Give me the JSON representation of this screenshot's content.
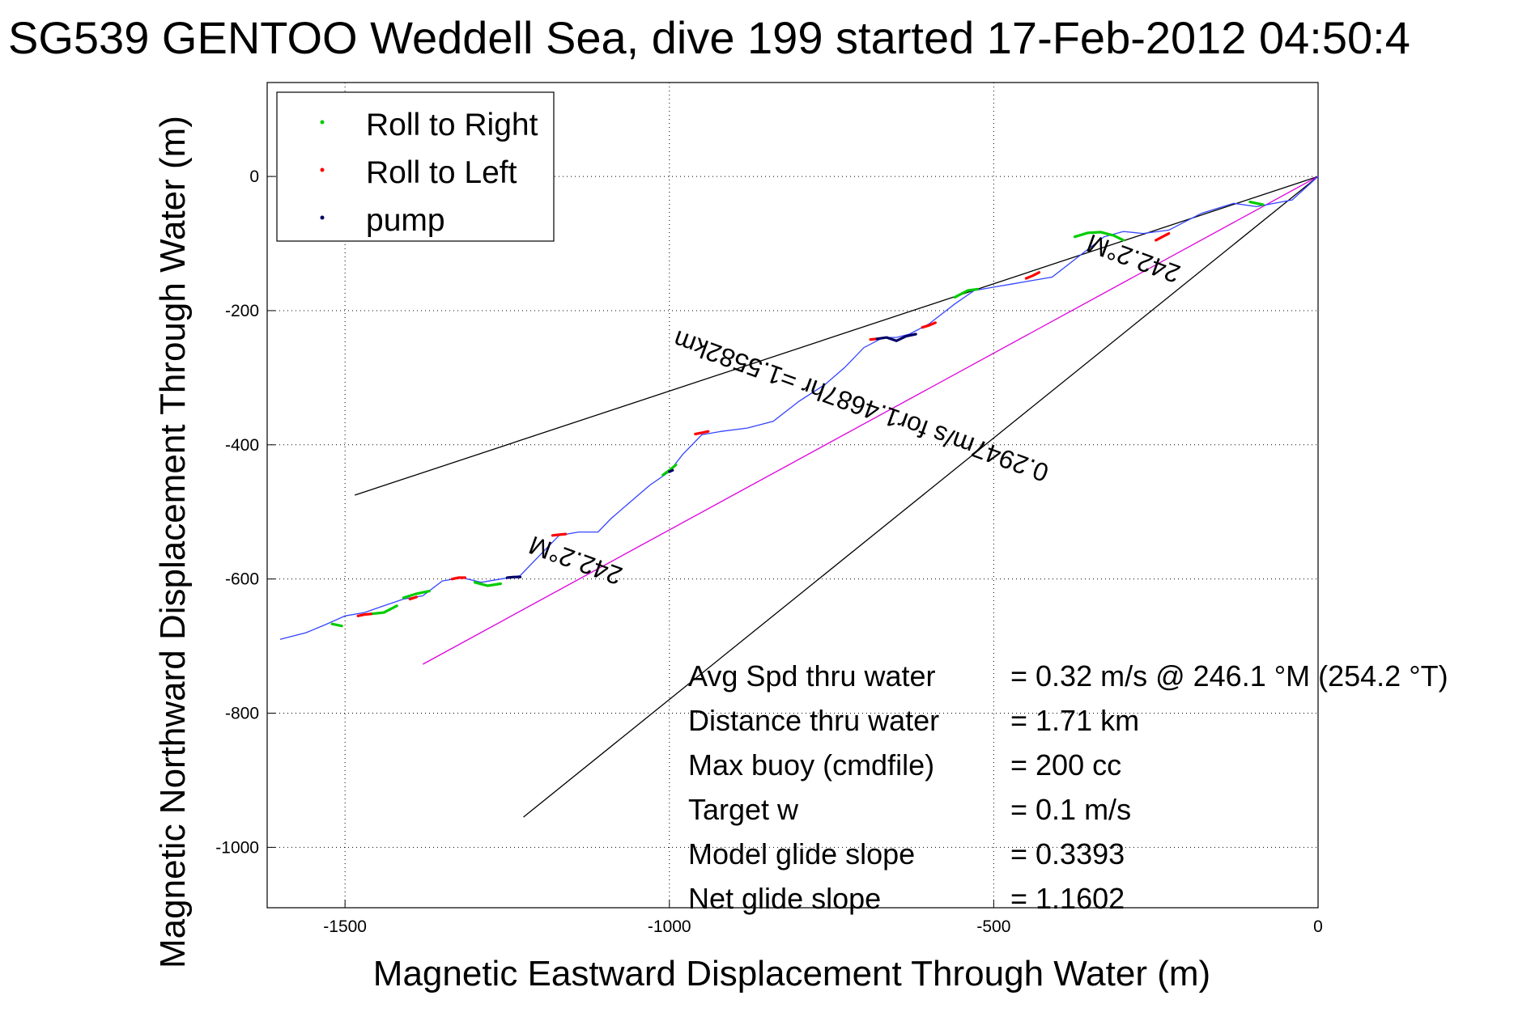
{
  "chart_data": {
    "type": "line",
    "title": "SG539 GENTOO Weddell Sea, dive 199 started 17-Feb-2012 04:50:4",
    "xlabel": "Magnetic Eastward Displacement Through Water (m)",
    "ylabel": "Magnetic Northward Displacement Through Water (m)",
    "xlim": [
      -1620,
      0
    ],
    "ylim": [
      -1090,
      140
    ],
    "xticks": [
      -1500,
      -1000,
      -500,
      0
    ],
    "yticks": [
      0,
      -200,
      -400,
      -600,
      -800,
      -1000
    ],
    "grid": true,
    "legend_position": "top-left",
    "legend": [
      {
        "label": "Roll to Right",
        "color": "#00cc00"
      },
      {
        "label": "Roll to Left",
        "color": "#ff0000"
      },
      {
        "label": "pump",
        "color": "#000066"
      }
    ],
    "track": {
      "color": "#3344ff",
      "x": [
        0,
        -40,
        -95,
        -130,
        -180,
        -230,
        -270,
        -300,
        -330,
        -370,
        -410,
        -440,
        -470,
        -500,
        -530,
        -560,
        -600,
        -630,
        -650,
        -670,
        -700,
        -730,
        -760,
        -800,
        -840,
        -880,
        -920,
        -950,
        -980,
        -1000,
        -1030,
        -1060,
        -1090,
        -1110,
        -1140,
        -1170,
        -1200,
        -1230,
        -1260,
        -1290,
        -1320,
        -1350,
        -1380,
        -1410,
        -1440,
        -1470,
        -1500,
        -1530,
        -1560,
        -1600
      ],
      "y": [
        0,
        -35,
        -45,
        -40,
        -55,
        -80,
        -85,
        -82,
        -90,
        -120,
        -150,
        -155,
        -160,
        -165,
        -170,
        -190,
        -220,
        -235,
        -240,
        -240,
        -255,
        -285,
        -310,
        -335,
        -365,
        -375,
        -380,
        -385,
        -415,
        -440,
        -460,
        -485,
        -510,
        -530,
        -530,
        -535,
        -565,
        -595,
        -600,
        -605,
        -598,
        -603,
        -625,
        -630,
        -640,
        -650,
        -655,
        -668,
        -680,
        -690
      ]
    },
    "roll_right_segments": [
      {
        "x": [
          -375,
          -355,
          -335,
          -315,
          -300
        ],
        "y": [
          -90,
          -84,
          -83,
          -88,
          -95
        ]
      },
      {
        "x": [
          -560,
          -540,
          -525
        ],
        "y": [
          -180,
          -170,
          -168
        ]
      },
      {
        "x": [
          -1010,
          -1000,
          -990
        ],
        "y": [
          -445,
          -438,
          -430
        ]
      },
      {
        "x": [
          -1300,
          -1280,
          -1260
        ],
        "y": [
          -605,
          -610,
          -607
        ]
      },
      {
        "x": [
          -1410,
          -1390,
          -1370
        ],
        "y": [
          -628,
          -622,
          -618
        ]
      },
      {
        "x": [
          -1460,
          -1440,
          -1420
        ],
        "y": [
          -652,
          -650,
          -640
        ]
      },
      {
        "x": [
          -1520,
          -1505
        ],
        "y": [
          -667,
          -670
        ]
      },
      {
        "x": [
          -105,
          -95,
          -85
        ],
        "y": [
          -38,
          -40,
          -42
        ]
      }
    ],
    "roll_left_segments": [
      {
        "x": [
          -250,
          -240,
          -230
        ],
        "y": [
          -95,
          -90,
          -85
        ]
      },
      {
        "x": [
          -450,
          -440,
          -430
        ],
        "y": [
          -152,
          -148,
          -143
        ]
      },
      {
        "x": [
          -610,
          -600,
          -590
        ],
        "y": [
          -225,
          -222,
          -218
        ]
      },
      {
        "x": [
          -690,
          -680
        ],
        "y": [
          -243,
          -242
        ]
      },
      {
        "x": [
          -960,
          -950,
          -940
        ],
        "y": [
          -384,
          -382,
          -380
        ]
      },
      {
        "x": [
          -1180,
          -1170,
          -1160
        ],
        "y": [
          -535,
          -534,
          -533
        ]
      },
      {
        "x": [
          -1335,
          -1325,
          -1315
        ],
        "y": [
          -600,
          -598,
          -598
        ]
      },
      {
        "x": [
          -1400,
          -1390
        ],
        "y": [
          -630,
          -627
        ]
      },
      {
        "x": [
          -1480,
          -1470,
          -1460
        ],
        "y": [
          -655,
          -653,
          -652
        ]
      }
    ],
    "pump_segments": [
      {
        "x": [
          -680,
          -665,
          -650,
          -635,
          -620
        ],
        "y": [
          -242,
          -240,
          -245,
          -238,
          -235
        ]
      },
      {
        "x": [
          -1250,
          -1240,
          -1230
        ],
        "y": [
          -598,
          -597,
          -597
        ]
      },
      {
        "x": [
          -1000,
          -995
        ],
        "y": [
          -440,
          -438
        ]
      }
    ],
    "reference_lines": [
      {
        "x": [
          0,
          -1485
        ],
        "y": [
          0,
          -475
        ],
        "color": "#000000"
      },
      {
        "x": [
          0,
          -1225
        ],
        "y": [
          0,
          -955
        ],
        "color": "#000000"
      },
      {
        "x": [
          0,
          -1380
        ],
        "y": [
          0,
          -727
        ],
        "color": "#dd00dd"
      }
    ],
    "annotations": [
      {
        "text": "242.2°M",
        "x": -280,
        "y": -110,
        "rotation": 200
      },
      {
        "text": "0.2947m/s for1.4687hr =1.5582km",
        "x": -700,
        "y": -330,
        "rotation": 200
      },
      {
        "text": "242.2°M",
        "x": -1140,
        "y": -560,
        "rotation": 200
      }
    ],
    "stats": [
      {
        "label": "Avg Spd thru water",
        "value": "=  0.32 m/s @ 246.1 °M (254.2 °T)"
      },
      {
        "label": "Distance thru water",
        "value": "=  1.71 km"
      },
      {
        "label": "Max buoy (cmdfile)",
        "value": "= 200 cc"
      },
      {
        "label": "Target w",
        "value": "= 0.1 m/s"
      },
      {
        "label": "Model glide slope",
        "value": "= 0.3393"
      },
      {
        "label": "Net glide slope",
        "value": "= 1.1602"
      }
    ]
  }
}
